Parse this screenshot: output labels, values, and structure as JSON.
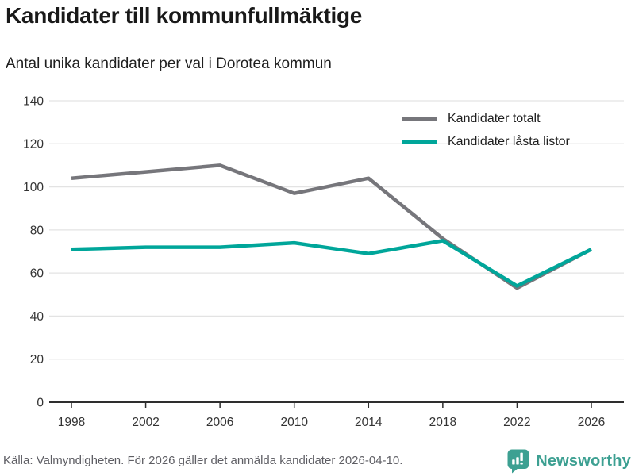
{
  "header": {
    "title": "Kandidater till kommunfullmäktige",
    "subtitle": "Antal unika kandidater per val i Dorotea kommun"
  },
  "chart_data": {
    "type": "line",
    "x": [
      1998,
      2002,
      2006,
      2010,
      2014,
      2018,
      2022,
      2026
    ],
    "series": [
      {
        "name": "Kandidater totalt",
        "color": "#76767b",
        "values": [
          104,
          107,
          110,
          97,
          104,
          76,
          53,
          71
        ]
      },
      {
        "name": "Kandidater låsta listor",
        "color": "#00a69a",
        "values": [
          71,
          72,
          72,
          74,
          69,
          75,
          54,
          71
        ]
      }
    ],
    "title": "Kandidater till kommunfullmäktige",
    "subtitle": "Antal unika kandidater per val i Dorotea kommun",
    "xlabel": "",
    "ylabel": "",
    "ylim": [
      0,
      140
    ],
    "yticks": [
      0,
      20,
      40,
      60,
      80,
      100,
      120,
      140
    ],
    "grid": true,
    "legend_position": "top-right",
    "axis_text_color": "#333333",
    "gridline_color": "#e3e3e3",
    "axis_line_color": "#2e2e2e"
  },
  "footer": {
    "source": "Källa: Valmyndigheten. För 2026 gäller det anmälda kandidater 2026-04-10.",
    "brand": "Newsworthy",
    "brand_color": "#3da092",
    "brand_icon": "bar-chart-speech-bubble-icon"
  }
}
